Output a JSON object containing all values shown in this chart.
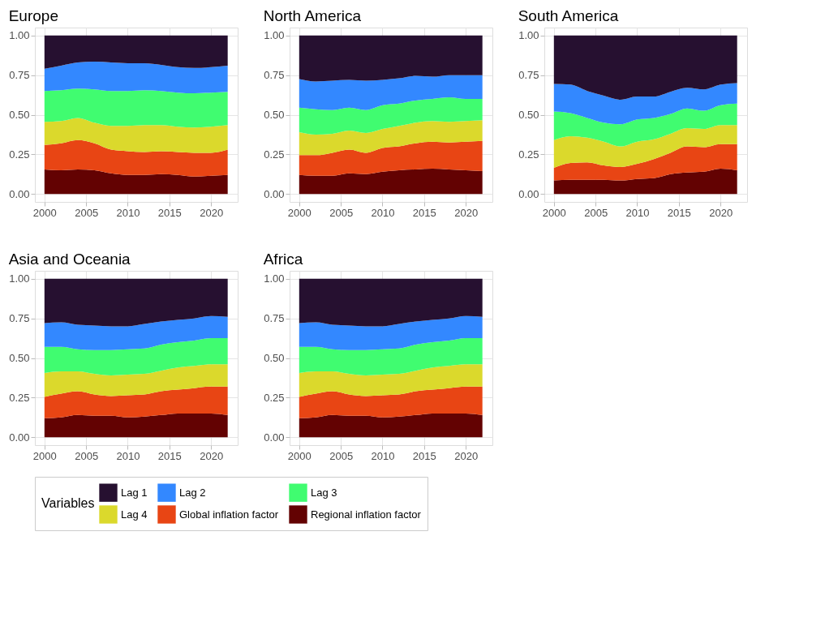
{
  "chart_data": [
    {
      "type": "area",
      "title": "Europe",
      "stacked": true,
      "grid": true,
      "legend": "bottom",
      "legend_title": "Variables",
      "x": [
        2000,
        2002,
        2004,
        2006,
        2008,
        2010,
        2012,
        2014,
        2016,
        2018,
        2020,
        2022
      ],
      "xlim": [
        1998.85,
        2023.2
      ],
      "xticks": [
        2000,
        2005,
        2010,
        2015,
        2020
      ],
      "ylim": [
        -0.05,
        1.05
      ],
      "yticks": [
        {
          "value": 0,
          "label": "0.00"
        },
        {
          "value": 0.25,
          "label": "0.25"
        },
        {
          "value": 0.5,
          "label": "0.50"
        },
        {
          "value": 0.75,
          "label": "0.75"
        },
        {
          "value": 1,
          "label": "1.00"
        }
      ],
      "series": [
        {
          "name": "Regional inflation factor",
          "color": "#630202",
          "values": [
            0.155,
            0.15,
            0.155,
            0.15,
            0.13,
            0.12,
            0.12,
            0.125,
            0.12,
            0.11,
            0.115,
            0.12
          ]
        },
        {
          "name": "Global inflation factor",
          "color": "#e84514",
          "values": [
            0.155,
            0.17,
            0.185,
            0.17,
            0.15,
            0.15,
            0.145,
            0.145,
            0.145,
            0.15,
            0.145,
            0.16
          ]
        },
        {
          "name": "Lag 4",
          "color": "#dbd92c",
          "values": [
            0.145,
            0.14,
            0.14,
            0.13,
            0.15,
            0.16,
            0.17,
            0.165,
            0.16,
            0.16,
            0.165,
            0.155
          ]
        },
        {
          "name": "Lag 3",
          "color": "#40fc70",
          "values": [
            0.195,
            0.195,
            0.185,
            0.21,
            0.22,
            0.22,
            0.22,
            0.215,
            0.215,
            0.215,
            0.215,
            0.21
          ]
        },
        {
          "name": "Lag 2",
          "color": "#3388ff",
          "values": [
            0.14,
            0.155,
            0.165,
            0.175,
            0.18,
            0.175,
            0.17,
            0.165,
            0.16,
            0.16,
            0.16,
            0.165
          ]
        },
        {
          "name": "Lag 1",
          "color": "#261030",
          "values": [
            0.21,
            0.19,
            0.17,
            0.165,
            0.17,
            0.175,
            0.175,
            0.185,
            0.2,
            0.205,
            0.2,
            0.19
          ]
        }
      ]
    },
    {
      "type": "area",
      "title": "North America",
      "stacked": true,
      "grid": true,
      "x": [
        2000,
        2002,
        2004,
        2006,
        2008,
        2010,
        2012,
        2014,
        2016,
        2018,
        2020,
        2022
      ],
      "xlim": [
        1998.85,
        2023.2
      ],
      "xticks": [
        2000,
        2005,
        2010,
        2015,
        2020
      ],
      "ylim": [
        -0.05,
        1.05
      ],
      "yticks": [
        {
          "value": 0,
          "label": "0.00"
        },
        {
          "value": 0.25,
          "label": "0.25"
        },
        {
          "value": 0.5,
          "label": "0.50"
        },
        {
          "value": 0.75,
          "label": "0.75"
        },
        {
          "value": 1,
          "label": "1.00"
        }
      ],
      "series": [
        {
          "name": "Regional inflation factor",
          "color": "#630202",
          "values": [
            0.12,
            0.115,
            0.115,
            0.13,
            0.125,
            0.14,
            0.15,
            0.155,
            0.16,
            0.155,
            0.15,
            0.145
          ]
        },
        {
          "name": "Global inflation factor",
          "color": "#e84514",
          "values": [
            0.125,
            0.13,
            0.145,
            0.15,
            0.135,
            0.15,
            0.15,
            0.165,
            0.17,
            0.17,
            0.18,
            0.19
          ]
        },
        {
          "name": "Lag 4",
          "color": "#dbd92c",
          "values": [
            0.145,
            0.13,
            0.12,
            0.12,
            0.125,
            0.12,
            0.13,
            0.13,
            0.13,
            0.13,
            0.13,
            0.13
          ]
        },
        {
          "name": "Lag 3",
          "color": "#40fc70",
          "values": [
            0.155,
            0.16,
            0.15,
            0.145,
            0.145,
            0.15,
            0.14,
            0.14,
            0.14,
            0.155,
            0.14,
            0.135
          ]
        },
        {
          "name": "Lag 2",
          "color": "#3388ff",
          "values": [
            0.18,
            0.175,
            0.185,
            0.175,
            0.185,
            0.16,
            0.16,
            0.155,
            0.14,
            0.14,
            0.15,
            0.15
          ]
        },
        {
          "name": "Lag 1",
          "color": "#261030",
          "values": [
            0.275,
            0.29,
            0.285,
            0.28,
            0.285,
            0.28,
            0.27,
            0.255,
            0.26,
            0.25,
            0.25,
            0.25
          ]
        }
      ]
    },
    {
      "type": "area",
      "title": "South America",
      "stacked": true,
      "grid": true,
      "x": [
        2000,
        2002,
        2004,
        2006,
        2008,
        2010,
        2012,
        2014,
        2016,
        2018,
        2020,
        2022
      ],
      "xlim": [
        1998.85,
        2023.2
      ],
      "xticks": [
        2000,
        2005,
        2010,
        2015,
        2020
      ],
      "ylim": [
        -0.05,
        1.05
      ],
      "yticks": [
        {
          "value": 0,
          "label": "0.00"
        },
        {
          "value": 0.25,
          "label": "0.25"
        },
        {
          "value": 0.5,
          "label": "0.50"
        },
        {
          "value": 0.75,
          "label": "0.75"
        },
        {
          "value": 1,
          "label": "1.00"
        }
      ],
      "series": [
        {
          "name": "Regional inflation factor",
          "color": "#630202",
          "values": [
            0.085,
            0.09,
            0.09,
            0.09,
            0.085,
            0.095,
            0.1,
            0.125,
            0.135,
            0.14,
            0.16,
            0.15
          ]
        },
        {
          "name": "Global inflation factor",
          "color": "#e84514",
          "values": [
            0.08,
            0.105,
            0.11,
            0.09,
            0.085,
            0.095,
            0.12,
            0.135,
            0.165,
            0.155,
            0.155,
            0.165
          ]
        },
        {
          "name": "Lag 4",
          "color": "#dbd92c",
          "values": [
            0.175,
            0.17,
            0.155,
            0.15,
            0.13,
            0.14,
            0.125,
            0.12,
            0.115,
            0.115,
            0.12,
            0.12
          ]
        },
        {
          "name": "Lag 3",
          "color": "#40fc70",
          "values": [
            0.18,
            0.145,
            0.125,
            0.12,
            0.14,
            0.14,
            0.135,
            0.125,
            0.125,
            0.115,
            0.125,
            0.135
          ]
        },
        {
          "name": "Lag 2",
          "color": "#3388ff",
          "values": [
            0.175,
            0.18,
            0.17,
            0.17,
            0.155,
            0.145,
            0.135,
            0.14,
            0.13,
            0.135,
            0.13,
            0.13
          ]
        },
        {
          "name": "Lag 1",
          "color": "#261030",
          "values": [
            0.305,
            0.31,
            0.35,
            0.38,
            0.405,
            0.385,
            0.385,
            0.355,
            0.33,
            0.34,
            0.31,
            0.3
          ]
        }
      ]
    },
    {
      "type": "area",
      "title": "Asia and Oceania",
      "stacked": true,
      "grid": true,
      "x": [
        2000,
        2002,
        2004,
        2006,
        2008,
        2010,
        2012,
        2014,
        2016,
        2018,
        2020,
        2022
      ],
      "xlim": [
        1998.85,
        2023.2
      ],
      "xticks": [
        2000,
        2005,
        2010,
        2015,
        2020
      ],
      "ylim": [
        -0.05,
        1.05
      ],
      "yticks": [
        {
          "value": 0,
          "label": "0.00"
        },
        {
          "value": 0.25,
          "label": "0.25"
        },
        {
          "value": 0.5,
          "label": "0.50"
        },
        {
          "value": 0.75,
          "label": "0.75"
        },
        {
          "value": 1,
          "label": "1.00"
        }
      ],
      "series": [
        {
          "name": "Regional inflation factor",
          "color": "#630202",
          "values": [
            0.12,
            0.125,
            0.14,
            0.135,
            0.135,
            0.125,
            0.13,
            0.14,
            0.15,
            0.15,
            0.15,
            0.14
          ]
        },
        {
          "name": "Global inflation factor",
          "color": "#e84514",
          "values": [
            0.135,
            0.15,
            0.15,
            0.135,
            0.125,
            0.14,
            0.14,
            0.15,
            0.15,
            0.16,
            0.17,
            0.18
          ]
        },
        {
          "name": "Lag 4",
          "color": "#dbd92c",
          "values": [
            0.15,
            0.14,
            0.125,
            0.13,
            0.13,
            0.13,
            0.13,
            0.13,
            0.14,
            0.14,
            0.14,
            0.14
          ]
        },
        {
          "name": "Lag 3",
          "color": "#40fc70",
          "values": [
            0.165,
            0.155,
            0.14,
            0.15,
            0.16,
            0.16,
            0.16,
            0.165,
            0.16,
            0.16,
            0.165,
            0.165
          ]
        },
        {
          "name": "Lag 2",
          "color": "#3388ff",
          "values": [
            0.15,
            0.155,
            0.155,
            0.155,
            0.15,
            0.145,
            0.155,
            0.145,
            0.14,
            0.14,
            0.14,
            0.135
          ]
        },
        {
          "name": "Lag 1",
          "color": "#261030",
          "values": [
            0.28,
            0.275,
            0.29,
            0.295,
            0.3,
            0.3,
            0.285,
            0.27,
            0.26,
            0.25,
            0.235,
            0.24
          ]
        }
      ]
    },
    {
      "type": "area",
      "title": "Africa",
      "stacked": true,
      "grid": true,
      "x": [
        2000,
        2002,
        2004,
        2006,
        2008,
        2010,
        2012,
        2014,
        2016,
        2018,
        2020,
        2022
      ],
      "xlim": [
        1998.85,
        2023.2
      ],
      "xticks": [
        2000,
        2005,
        2010,
        2015,
        2020
      ],
      "ylim": [
        -0.05,
        1.05
      ],
      "yticks": [
        {
          "value": 0,
          "label": "0.00"
        },
        {
          "value": 0.25,
          "label": "0.25"
        },
        {
          "value": 0.5,
          "label": "0.50"
        },
        {
          "value": 0.75,
          "label": "0.75"
        },
        {
          "value": 1,
          "label": "1.00"
        }
      ],
      "series": [
        {
          "name": "Regional inflation factor",
          "color": "#630202",
          "values": [
            0.12,
            0.125,
            0.14,
            0.135,
            0.135,
            0.125,
            0.13,
            0.14,
            0.15,
            0.15,
            0.15,
            0.14
          ]
        },
        {
          "name": "Global inflation factor",
          "color": "#e84514",
          "values": [
            0.135,
            0.15,
            0.15,
            0.135,
            0.125,
            0.14,
            0.14,
            0.15,
            0.15,
            0.16,
            0.17,
            0.18
          ]
        },
        {
          "name": "Lag 4",
          "color": "#dbd92c",
          "values": [
            0.15,
            0.14,
            0.125,
            0.13,
            0.13,
            0.13,
            0.13,
            0.13,
            0.14,
            0.14,
            0.14,
            0.14
          ]
        },
        {
          "name": "Lag 3",
          "color": "#40fc70",
          "values": [
            0.165,
            0.155,
            0.14,
            0.15,
            0.16,
            0.16,
            0.16,
            0.165,
            0.16,
            0.16,
            0.165,
            0.165
          ]
        },
        {
          "name": "Lag 2",
          "color": "#3388ff",
          "values": [
            0.15,
            0.155,
            0.155,
            0.155,
            0.15,
            0.145,
            0.155,
            0.145,
            0.14,
            0.14,
            0.14,
            0.135
          ]
        },
        {
          "name": "Lag 1",
          "color": "#261030",
          "values": [
            0.28,
            0.275,
            0.29,
            0.295,
            0.3,
            0.3,
            0.285,
            0.27,
            0.26,
            0.25,
            0.235,
            0.24
          ]
        }
      ]
    }
  ]
}
